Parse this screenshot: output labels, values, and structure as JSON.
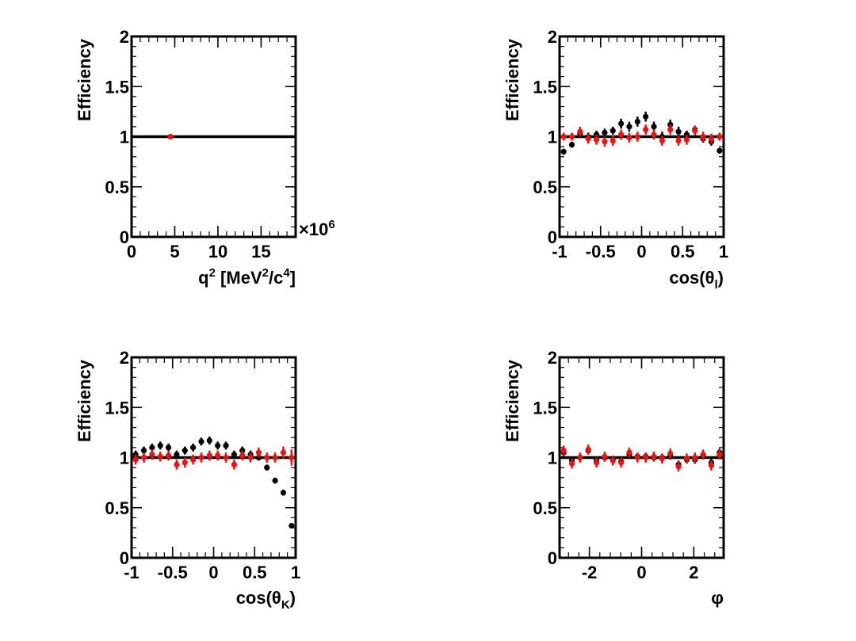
{
  "colors": {
    "series_black": "#000000",
    "series_red": "#ee1111",
    "line": "#000000"
  },
  "chart_data": [
    {
      "type": "scatter",
      "xlabel_parts": [
        "q",
        "2",
        " [MeV",
        "2",
        "/c",
        "4",
        "]"
      ],
      "ylabel": "Efficiency",
      "xlim": [
        0,
        19
      ],
      "ylim": [
        0,
        2
      ],
      "x_ticks": [
        0,
        5,
        10,
        15
      ],
      "x_tick_labels": [
        "0",
        "5",
        "10",
        "15"
      ],
      "y_ticks": [
        0,
        0.5,
        1,
        1.5,
        2
      ],
      "y_tick_labels": [
        "0",
        "0.5",
        "1",
        "1.5",
        "2"
      ],
      "multiplier_parts": [
        "×10",
        "6"
      ],
      "reference_line": 1,
      "series": [
        {
          "color": "black",
          "x": [
            4.5
          ],
          "y": [
            1.0
          ],
          "yerr": [
            0.0
          ]
        },
        {
          "color": "red",
          "x": [
            4.5
          ],
          "y": [
            1.0
          ],
          "yerr": [
            0.0
          ]
        }
      ]
    },
    {
      "type": "scatter",
      "xlabel_parts": [
        "cos(θ",
        "l",
        ")"
      ],
      "ylabel": "Efficiency",
      "xlim": [
        -1,
        1
      ],
      "ylim": [
        0,
        2
      ],
      "x_ticks": [
        -1,
        -0.5,
        0,
        0.5,
        1
      ],
      "x_tick_labels": [
        "-1",
        "-0.5",
        "0",
        "0.5",
        "1"
      ],
      "y_ticks": [
        0,
        0.5,
        1,
        1.5,
        2
      ],
      "y_tick_labels": [
        "0",
        "0.5",
        "1",
        "1.5",
        "2"
      ],
      "reference_line": 1,
      "series": [
        {
          "color": "black",
          "x": [
            -0.95,
            -0.85,
            -0.75,
            -0.65,
            -0.55,
            -0.45,
            -0.35,
            -0.25,
            -0.15,
            -0.05,
            0.05,
            0.15,
            0.25,
            0.35,
            0.45,
            0.55,
            0.65,
            0.75,
            0.85,
            0.95
          ],
          "y": [
            0.85,
            0.92,
            1.03,
            1.0,
            1.02,
            1.04,
            1.06,
            1.13,
            1.1,
            1.15,
            1.2,
            1.1,
            1.0,
            1.12,
            1.05,
            1.02,
            1.07,
            0.98,
            0.95,
            0.86
          ],
          "yerr": [
            0.03,
            0.03,
            0.04,
            0.04,
            0.04,
            0.04,
            0.04,
            0.05,
            0.05,
            0.05,
            0.05,
            0.05,
            0.05,
            0.05,
            0.05,
            0.04,
            0.04,
            0.04,
            0.04,
            0.03
          ]
        },
        {
          "color": "red",
          "x": [
            -0.95,
            -0.85,
            -0.75,
            -0.65,
            -0.55,
            -0.45,
            -0.35,
            -0.25,
            -0.15,
            -0.05,
            0.05,
            0.15,
            0.25,
            0.35,
            0.45,
            0.55,
            0.65,
            0.75,
            0.85,
            0.95
          ],
          "y": [
            1.0,
            1.0,
            1.05,
            0.98,
            0.97,
            0.95,
            0.96,
            1.02,
            0.99,
            1.0,
            1.07,
            1.02,
            0.96,
            1.07,
            0.96,
            0.97,
            1.06,
            1.0,
            0.98,
            1.0
          ],
          "yerr": [
            0.04,
            0.04,
            0.05,
            0.05,
            0.05,
            0.05,
            0.05,
            0.05,
            0.05,
            0.05,
            0.05,
            0.05,
            0.05,
            0.05,
            0.05,
            0.05,
            0.05,
            0.05,
            0.05,
            0.04
          ]
        }
      ]
    },
    {
      "type": "scatter",
      "xlabel_parts": [
        "cos(θ",
        "K",
        ")"
      ],
      "ylabel": "Efficiency",
      "xlim": [
        -1,
        1
      ],
      "ylim": [
        0,
        2
      ],
      "x_ticks": [
        -1,
        -0.5,
        0,
        0.5,
        1
      ],
      "x_tick_labels": [
        "-1",
        "-0.5",
        "0",
        "0.5",
        "1"
      ],
      "y_ticks": [
        0,
        0.5,
        1,
        1.5,
        2
      ],
      "y_tick_labels": [
        "0",
        "0.5",
        "1",
        "1.5",
        "2"
      ],
      "reference_line": 1,
      "series": [
        {
          "color": "black",
          "x": [
            -0.95,
            -0.85,
            -0.75,
            -0.65,
            -0.55,
            -0.45,
            -0.35,
            -0.25,
            -0.15,
            -0.05,
            0.05,
            0.15,
            0.25,
            0.35,
            0.45,
            0.55,
            0.65,
            0.75,
            0.85,
            0.95
          ],
          "y": [
            1.03,
            1.07,
            1.1,
            1.12,
            1.1,
            1.03,
            1.07,
            1.1,
            1.16,
            1.17,
            1.12,
            1.12,
            1.03,
            1.07,
            1.03,
            1.0,
            0.9,
            0.77,
            0.65,
            0.32
          ],
          "yerr": [
            0.04,
            0.04,
            0.04,
            0.04,
            0.04,
            0.04,
            0.04,
            0.04,
            0.04,
            0.04,
            0.04,
            0.04,
            0.04,
            0.04,
            0.04,
            0.03,
            0.03,
            0.03,
            0.03,
            0.02
          ]
        },
        {
          "color": "red",
          "x": [
            -0.95,
            -0.85,
            -0.75,
            -0.65,
            -0.55,
            -0.45,
            -0.35,
            -0.25,
            -0.15,
            -0.05,
            0.05,
            0.15,
            0.25,
            0.35,
            0.45,
            0.55,
            0.65,
            0.75,
            0.85,
            0.95
          ],
          "y": [
            0.98,
            1.0,
            1.03,
            1.01,
            1.02,
            0.93,
            0.95,
            0.98,
            1.0,
            1.02,
            1.02,
            1.0,
            0.93,
            1.02,
            1.0,
            1.05,
            1.0,
            1.0,
            1.05,
            1.0
          ],
          "yerr": [
            0.05,
            0.05,
            0.05,
            0.05,
            0.05,
            0.05,
            0.05,
            0.05,
            0.05,
            0.05,
            0.05,
            0.05,
            0.05,
            0.05,
            0.05,
            0.05,
            0.05,
            0.05,
            0.06,
            0.08
          ]
        }
      ]
    },
    {
      "type": "scatter",
      "xlabel_parts": [
        "φ"
      ],
      "ylabel": "Efficiency",
      "xlim": [
        -3.1416,
        3.1416
      ],
      "ylim": [
        0,
        2
      ],
      "x_ticks": [
        -2,
        0,
        2
      ],
      "x_tick_labels": [
        "-2",
        "0",
        "2"
      ],
      "y_ticks": [
        0,
        0.5,
        1,
        1.5,
        2
      ],
      "y_tick_labels": [
        "0",
        "0.5",
        "1",
        "1.5",
        "2"
      ],
      "reference_line": 1,
      "series": [
        {
          "color": "black",
          "x": [
            -2.985,
            -2.67,
            -2.356,
            -2.042,
            -1.728,
            -1.414,
            -1.1,
            -0.785,
            -0.471,
            -0.157,
            0.157,
            0.471,
            0.785,
            1.1,
            1.414,
            1.728,
            2.042,
            2.356,
            2.67,
            2.985
          ],
          "y": [
            1.05,
            0.97,
            1.0,
            1.07,
            0.97,
            1.0,
            0.98,
            0.96,
            1.03,
            1.01,
            1.01,
            1.0,
            1.0,
            1.02,
            0.93,
            0.98,
            0.98,
            1.02,
            0.95,
            1.05
          ],
          "yerr": [
            0.04,
            0.04,
            0.04,
            0.04,
            0.04,
            0.04,
            0.04,
            0.04,
            0.04,
            0.04,
            0.04,
            0.04,
            0.04,
            0.04,
            0.04,
            0.04,
            0.04,
            0.04,
            0.04,
            0.04
          ]
        },
        {
          "color": "red",
          "x": [
            -2.985,
            -2.67,
            -2.356,
            -2.042,
            -1.728,
            -1.414,
            -1.1,
            -0.785,
            -0.471,
            -0.157,
            0.157,
            0.471,
            0.785,
            1.1,
            1.414,
            1.728,
            2.042,
            2.356,
            2.67,
            2.985
          ],
          "y": [
            1.07,
            0.94,
            1.0,
            1.08,
            0.95,
            1.01,
            0.97,
            0.95,
            1.05,
            1.0,
            1.0,
            1.01,
            0.99,
            1.04,
            0.91,
            0.99,
            1.0,
            1.03,
            0.92,
            1.03
          ],
          "yerr": [
            0.05,
            0.05,
            0.05,
            0.05,
            0.05,
            0.05,
            0.05,
            0.05,
            0.05,
            0.05,
            0.05,
            0.05,
            0.05,
            0.05,
            0.05,
            0.05,
            0.05,
            0.05,
            0.05,
            0.05
          ]
        }
      ]
    }
  ]
}
